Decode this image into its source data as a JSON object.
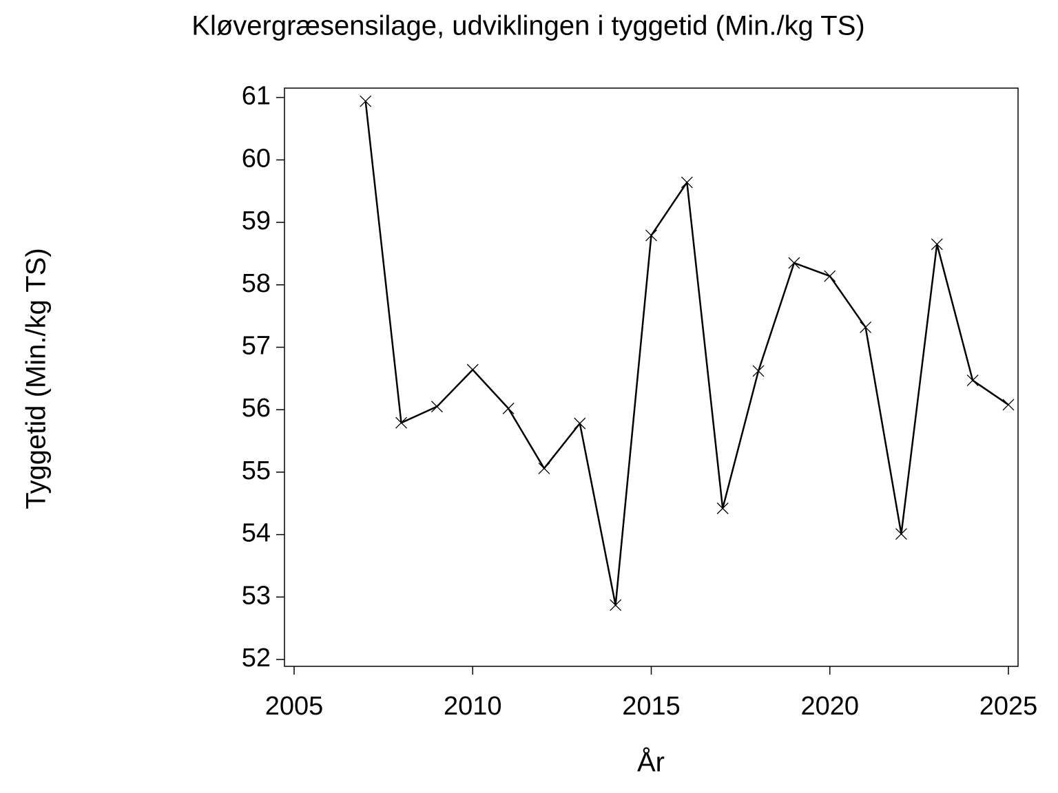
{
  "chart_data": {
    "type": "line",
    "title": "Kløvergræsensilage,  udviklingen  i  tyggetid  (Min./kg  TS)",
    "x_label": "År",
    "y_label": "Tyggetid  (Min./kg TS)",
    "x": [
      2007,
      2008,
      2009,
      2010,
      2011,
      2012,
      2013,
      2014,
      2015,
      2016,
      2017,
      2018,
      2019,
      2020,
      2021,
      2022,
      2023,
      2024,
      2025
    ],
    "series": [
      {
        "color": "#000000",
        "values": [
          60.94,
          55.79,
          56.05,
          56.64,
          56.02,
          55.06,
          55.78,
          52.87,
          58.79,
          59.64,
          54.42,
          56.62,
          58.35,
          58.14,
          57.32,
          54.01,
          58.65,
          56.47,
          56.08
        ]
      }
    ],
    "xlim": [
      2004.73,
      2025.27
    ],
    "xticks": [
      2005,
      2010,
      2015,
      2020,
      2025
    ],
    "ylim": [
      51.89,
      61.15
    ],
    "yticks": [
      52,
      53,
      54,
      55,
      56,
      57,
      58,
      59,
      60,
      61
    ],
    "grid": false,
    "marker": "x"
  }
}
